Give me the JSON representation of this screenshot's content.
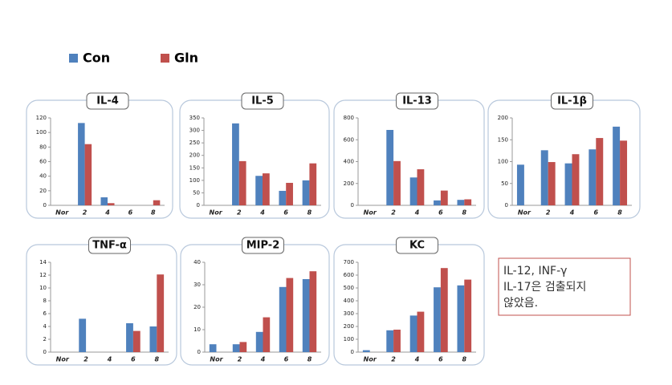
{
  "legend": [
    {
      "name": "Con",
      "color": "#4f81bd"
    },
    {
      "name": "Gln",
      "color": "#c0504d"
    }
  ],
  "chart_data": [
    {
      "type": "bar",
      "title": "IL-4",
      "categories": [
        "Nor",
        "2",
        "4",
        "6",
        "8"
      ],
      "series": [
        {
          "values": [
            0,
            113,
            11,
            0,
            0
          ]
        },
        {
          "values": [
            0,
            84,
            3,
            0,
            7
          ]
        }
      ],
      "ylim": [
        0,
        120
      ],
      "yticks": [
        0,
        20,
        40,
        60,
        80,
        100,
        120
      ]
    },
    {
      "type": "bar",
      "title": "IL-5",
      "categories": [
        "Nor",
        "2",
        "4",
        "6",
        "8"
      ],
      "series": [
        {
          "values": [
            0,
            328,
            118,
            58,
            100
          ]
        },
        {
          "values": [
            0,
            177,
            128,
            90,
            168
          ]
        }
      ],
      "ylim": [
        0,
        350
      ],
      "yticks": [
        0,
        50,
        100,
        150,
        200,
        250,
        300,
        350
      ]
    },
    {
      "type": "bar",
      "title": "IL-13",
      "categories": [
        "Nor",
        "2",
        "4",
        "6",
        "8"
      ],
      "series": [
        {
          "values": [
            0,
            690,
            255,
            45,
            50
          ]
        },
        {
          "values": [
            0,
            405,
            330,
            135,
            55
          ]
        }
      ],
      "ylim": [
        0,
        800
      ],
      "yticks": [
        0,
        200,
        400,
        600,
        800
      ]
    },
    {
      "type": "bar",
      "title": "IL-1β",
      "categories": [
        "Nor",
        "2",
        "4",
        "6",
        "8"
      ],
      "series": [
        {
          "values": [
            93,
            126,
            96,
            128,
            180
          ]
        },
        {
          "values": [
            0,
            99,
            117,
            154,
            148
          ]
        }
      ],
      "ylim": [
        0,
        200
      ],
      "yticks": [
        0,
        50,
        100,
        150,
        200
      ]
    },
    {
      "type": "bar",
      "title": "TNF-α",
      "categories": [
        "Nor",
        "2",
        "4",
        "6",
        "8"
      ],
      "series": [
        {
          "values": [
            0,
            5.2,
            0,
            4.5,
            4
          ]
        },
        {
          "values": [
            0,
            0,
            0,
            3.3,
            12.1
          ]
        }
      ],
      "ylim": [
        0,
        14
      ],
      "yticks": [
        0,
        2,
        4,
        6,
        8,
        10,
        12,
        14
      ]
    },
    {
      "type": "bar",
      "title": "MIP-2",
      "categories": [
        "Nor",
        "2",
        "4",
        "6",
        "8"
      ],
      "series": [
        {
          "values": [
            3.5,
            3.5,
            9,
            29,
            32.5
          ]
        },
        {
          "values": [
            0,
            4.5,
            15.5,
            33,
            36
          ]
        }
      ],
      "ylim": [
        0,
        40
      ],
      "yticks": [
        0,
        10,
        20,
        30,
        40
      ]
    },
    {
      "type": "bar",
      "title": "KC",
      "categories": [
        "Nor",
        "2",
        "4",
        "6",
        "8"
      ],
      "series": [
        {
          "values": [
            15,
            170,
            285,
            505,
            520
          ]
        },
        {
          "values": [
            0,
            175,
            315,
            655,
            565
          ]
        }
      ],
      "ylim": [
        0,
        700
      ],
      "yticks": [
        0,
        100,
        200,
        300,
        400,
        500,
        600,
        700
      ]
    }
  ],
  "note": [
    "IL-12, INF-γ",
    "IL-17은 검출되지",
    "않았음."
  ]
}
